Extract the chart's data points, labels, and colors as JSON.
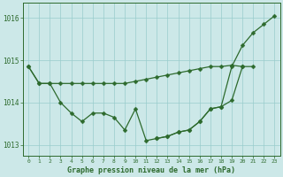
{
  "x": [
    0,
    1,
    2,
    3,
    4,
    5,
    6,
    7,
    8,
    9,
    10,
    11,
    12,
    13,
    14,
    15,
    16,
    17,
    18,
    19,
    20,
    21,
    22,
    23
  ],
  "s1": [
    1014.85,
    1014.45,
    1014.45,
    1014.45,
    1014.45,
    1014.45,
    1014.45,
    1014.45,
    1014.45,
    1014.45,
    1014.5,
    1014.55,
    1014.6,
    1014.65,
    1014.7,
    1014.75,
    1014.8,
    1014.85,
    1014.85,
    1014.88,
    1014.85,
    null,
    null,
    null
  ],
  "s2": [
    1014.85,
    1014.45,
    1014.45,
    1014.0,
    1013.75,
    1013.55,
    1013.75,
    1013.75,
    1013.65,
    1013.35,
    1013.85,
    1013.1,
    1013.15,
    1013.2,
    1013.3,
    1013.35,
    1013.55,
    1013.85,
    1013.9,
    1014.05,
    1014.85,
    1014.85,
    null,
    null
  ],
  "s3": [
    null,
    null,
    null,
    null,
    null,
    null,
    null,
    null,
    null,
    null,
    null,
    null,
    1013.15,
    1013.2,
    1013.3,
    1013.35,
    1013.55,
    1013.85,
    1013.9,
    1014.85,
    1015.35,
    1015.65,
    1015.85,
    1016.05
  ],
  "background_color": "#cce8e8",
  "grid_color": "#99cccc",
  "line_color": "#2d6a2d",
  "xlabel": "Graphe pression niveau de la mer (hPa)",
  "ylim": [
    1012.75,
    1016.35
  ],
  "yticks": [
    1013,
    1014,
    1015,
    1016
  ],
  "xticks": [
    0,
    1,
    2,
    3,
    4,
    5,
    6,
    7,
    8,
    9,
    10,
    11,
    12,
    13,
    14,
    15,
    16,
    17,
    18,
    19,
    20,
    21,
    22,
    23
  ]
}
